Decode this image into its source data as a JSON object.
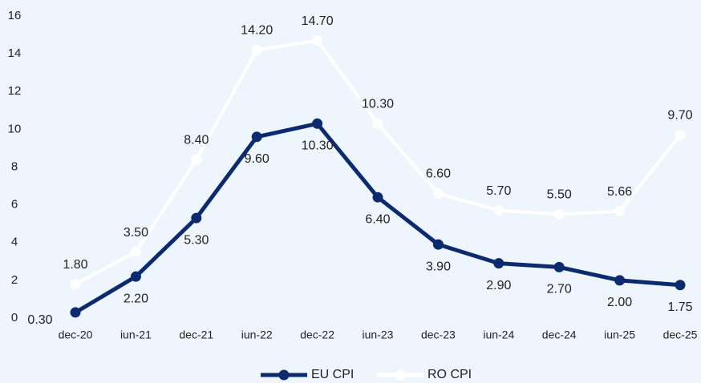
{
  "chart_data": {
    "type": "line",
    "categories": [
      "dec-20",
      "iun-21",
      "dec-21",
      "iun-22",
      "dec-22",
      "iun-23",
      "dec-23",
      "iun-24",
      "dec-24",
      "iun-25",
      "dec-25"
    ],
    "series": [
      {
        "name": "EU CPI",
        "color": "#0b2b6e",
        "values": [
          0.3,
          2.2,
          5.3,
          9.6,
          10.3,
          6.4,
          3.9,
          2.9,
          2.7,
          2.0,
          1.75
        ],
        "value_labels": [
          "0.30",
          "2.20",
          "5.30",
          "9.60",
          "10.30",
          "6.40",
          "3.90",
          "2.90",
          "2.70",
          "2.00",
          "1.75"
        ]
      },
      {
        "name": "RO CPI",
        "color": "#ffffff",
        "values": [
          1.8,
          3.5,
          8.4,
          14.2,
          14.7,
          10.3,
          6.6,
          5.7,
          5.5,
          5.66,
          9.7
        ],
        "value_labels": [
          "1.80",
          "3.50",
          "8.40",
          "14.20",
          "14.70",
          "10.30",
          "6.60",
          "5.70",
          "5.50",
          "5.66",
          "9.70"
        ]
      }
    ],
    "ylim": [
      0,
      16
    ],
    "yticks": [
      0,
      2,
      4,
      6,
      8,
      10,
      12,
      14,
      16
    ],
    "grid": false,
    "legend": "bottom"
  }
}
